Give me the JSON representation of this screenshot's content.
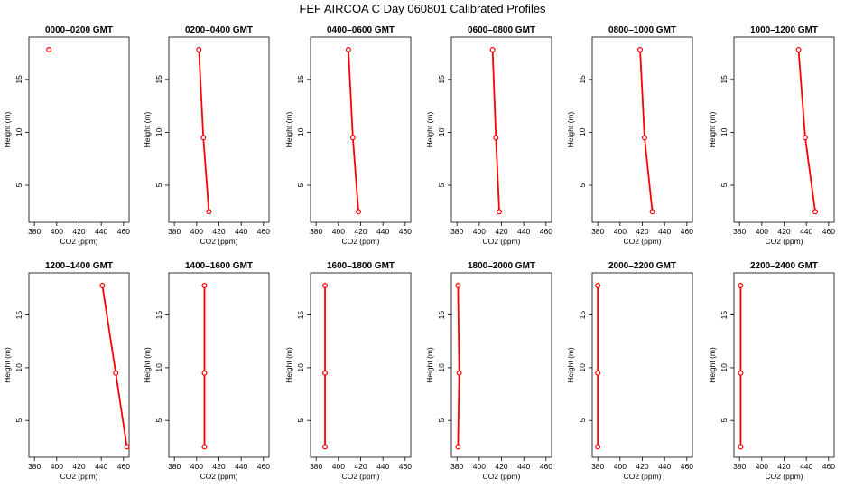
{
  "page": {
    "title": "FEF AIRCOA C  Day 060801  Calibrated Profiles"
  },
  "style": {
    "marker_color": "#ff0000",
    "axis_color": "#000000",
    "background": "#ffffff"
  },
  "chart_data": [
    {
      "type": "line",
      "title": "0000–0200 GMT",
      "xlabel": "CO2 (ppm)",
      "ylabel": "Height (m)",
      "xlim": [
        375,
        465
      ],
      "ylim": [
        1.5,
        19
      ],
      "xticks": [
        380,
        400,
        420,
        440,
        460
      ],
      "yticks": [
        5,
        10,
        15
      ],
      "x": [
        393
      ],
      "y": [
        17.8
      ]
    },
    {
      "type": "line",
      "title": "0200–0400 GMT",
      "xlabel": "CO2 (ppm)",
      "ylabel": "Height (m)",
      "xlim": [
        375,
        465
      ],
      "ylim": [
        1.5,
        19
      ],
      "xticks": [
        380,
        400,
        420,
        440,
        460
      ],
      "yticks": [
        5,
        10,
        15
      ],
      "x": [
        402,
        406,
        411
      ],
      "y": [
        17.8,
        9.5,
        2.5
      ]
    },
    {
      "type": "line",
      "title": "0400–0600 GMT",
      "xlabel": "CO2 (ppm)",
      "ylabel": "Height (m)",
      "xlim": [
        375,
        465
      ],
      "ylim": [
        1.5,
        19
      ],
      "xticks": [
        380,
        400,
        420,
        440,
        460
      ],
      "yticks": [
        5,
        10,
        15
      ],
      "x": [
        409,
        413,
        418
      ],
      "y": [
        17.8,
        9.5,
        2.5
      ]
    },
    {
      "type": "line",
      "title": "0600–0800 GMT",
      "xlabel": "CO2 (ppm)",
      "ylabel": "Height (m)",
      "xlim": [
        375,
        465
      ],
      "ylim": [
        1.5,
        19
      ],
      "xticks": [
        380,
        400,
        420,
        440,
        460
      ],
      "yticks": [
        5,
        10,
        15
      ],
      "x": [
        412,
        415,
        418
      ],
      "y": [
        17.8,
        9.5,
        2.5
      ]
    },
    {
      "type": "line",
      "title": "0800–1000 GMT",
      "xlabel": "CO2 (ppm)",
      "ylabel": "Height (m)",
      "xlim": [
        375,
        465
      ],
      "ylim": [
        1.5,
        19
      ],
      "xticks": [
        380,
        400,
        420,
        440,
        460
      ],
      "yticks": [
        5,
        10,
        15
      ],
      "x": [
        418,
        422,
        429
      ],
      "y": [
        17.8,
        9.5,
        2.5
      ]
    },
    {
      "type": "line",
      "title": "1000–1200 GMT",
      "xlabel": "CO2 (ppm)",
      "ylabel": "Height (m)",
      "xlim": [
        375,
        465
      ],
      "ylim": [
        1.5,
        19
      ],
      "xticks": [
        380,
        400,
        420,
        440,
        460
      ],
      "yticks": [
        5,
        10,
        15
      ],
      "x": [
        433,
        439,
        448
      ],
      "y": [
        17.8,
        9.5,
        2.5
      ]
    },
    {
      "type": "line",
      "title": "1200–1400 GMT",
      "xlabel": "CO2 (ppm)",
      "ylabel": "Height (m)",
      "xlim": [
        375,
        465
      ],
      "ylim": [
        1.5,
        19
      ],
      "xticks": [
        380,
        400,
        420,
        440,
        460
      ],
      "yticks": [
        5,
        10,
        15
      ],
      "x": [
        441,
        453,
        463
      ],
      "y": [
        17.8,
        9.5,
        2.5
      ]
    },
    {
      "type": "line",
      "title": "1400–1600 GMT",
      "xlabel": "CO2 (ppm)",
      "ylabel": "Height (m)",
      "xlim": [
        375,
        465
      ],
      "ylim": [
        1.5,
        19
      ],
      "xticks": [
        380,
        400,
        420,
        440,
        460
      ],
      "yticks": [
        5,
        10,
        15
      ],
      "x": [
        407,
        407,
        407
      ],
      "y": [
        17.8,
        9.5,
        2.5
      ]
    },
    {
      "type": "line",
      "title": "1600–1800 GMT",
      "xlabel": "CO2 (ppm)",
      "ylabel": "Height (m)",
      "xlim": [
        375,
        465
      ],
      "ylim": [
        1.5,
        19
      ],
      "xticks": [
        380,
        400,
        420,
        440,
        460
      ],
      "yticks": [
        5,
        10,
        15
      ],
      "x": [
        388,
        388,
        388
      ],
      "y": [
        17.8,
        9.5,
        2.5
      ]
    },
    {
      "type": "line",
      "title": "1800–2000 GMT",
      "xlabel": "CO2 (ppm)",
      "ylabel": "Height (m)",
      "xlim": [
        375,
        465
      ],
      "ylim": [
        1.5,
        19
      ],
      "xticks": [
        380,
        400,
        420,
        440,
        460
      ],
      "yticks": [
        5,
        10,
        15
      ],
      "x": [
        381,
        382,
        381
      ],
      "y": [
        17.8,
        9.5,
        2.5
      ]
    },
    {
      "type": "line",
      "title": "2000–2200 GMT",
      "xlabel": "CO2 (ppm)",
      "ylabel": "Height (m)",
      "xlim": [
        375,
        465
      ],
      "ylim": [
        1.5,
        19
      ],
      "xticks": [
        380,
        400,
        420,
        440,
        460
      ],
      "yticks": [
        5,
        10,
        15
      ],
      "x": [
        380,
        380,
        380
      ],
      "y": [
        17.8,
        9.5,
        2.5
      ]
    },
    {
      "type": "line",
      "title": "2200–2400 GMT",
      "xlabel": "CO2 (ppm)",
      "ylabel": "Height (m)",
      "xlim": [
        375,
        465
      ],
      "ylim": [
        1.5,
        19
      ],
      "xticks": [
        380,
        400,
        420,
        440,
        460
      ],
      "yticks": [
        5,
        10,
        15
      ],
      "x": [
        381,
        381,
        381
      ],
      "y": [
        17.8,
        9.5,
        2.5
      ]
    }
  ]
}
